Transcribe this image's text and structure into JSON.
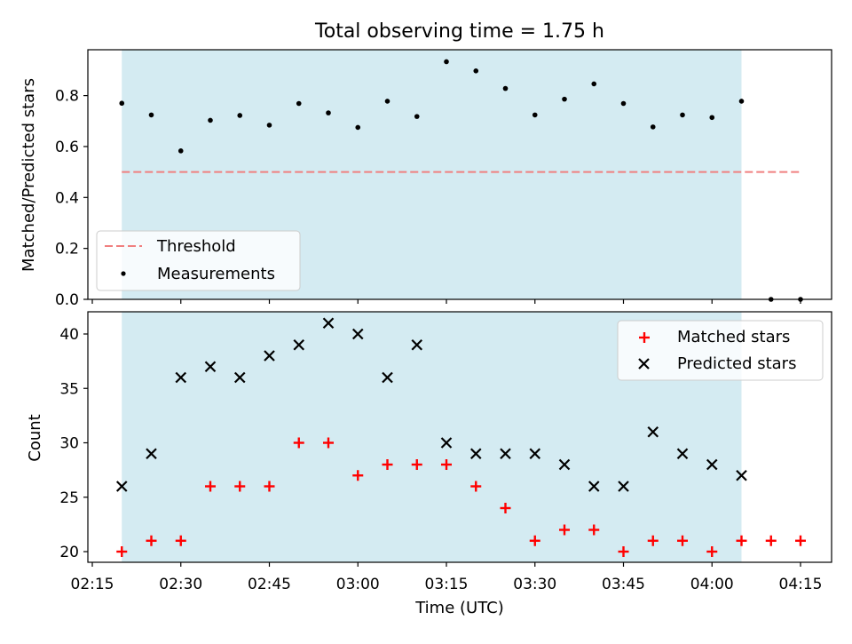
{
  "chart_data": [
    {
      "type": "scatter",
      "title": "Total observing time = 1.75 h",
      "ylabel": "Matched/Predicted stars",
      "xlabel": "",
      "ylim": [
        0,
        0.98
      ],
      "yticks": [
        0.0,
        0.2,
        0.4,
        0.6,
        0.8
      ],
      "ytick_labels": [
        "0.0",
        "0.2",
        "0.4",
        "0.6",
        "0.8"
      ],
      "shaded_span": {
        "from": "02:20",
        "to": "04:05",
        "color": "#add8e6"
      },
      "threshold": {
        "name": "Threshold",
        "value": 0.5,
        "from": "02:20",
        "to": "04:15",
        "color": "#f08080",
        "style": "dashed"
      },
      "series": [
        {
          "name": "Measurements",
          "color": "#000000",
          "marker": "dot",
          "x": [
            "02:20",
            "02:25",
            "02:30",
            "02:35",
            "02:40",
            "02:45",
            "02:50",
            "02:55",
            "03:00",
            "03:05",
            "03:10",
            "03:15",
            "03:20",
            "03:25",
            "03:30",
            "03:35",
            "03:40",
            "03:45",
            "03:50",
            "03:55",
            "04:00",
            "04:05",
            "04:10",
            "04:15"
          ],
          "y": [
            0.77,
            0.724,
            0.583,
            0.703,
            0.722,
            0.684,
            0.769,
            0.732,
            0.675,
            0.778,
            0.718,
            0.933,
            0.897,
            0.828,
            0.724,
            0.786,
            0.846,
            0.769,
            0.677,
            0.724,
            0.714,
            0.778,
            0.0,
            0.0
          ]
        }
      ],
      "legend": {
        "placement": "lower-left",
        "entries": [
          "Threshold",
          "Measurements"
        ]
      }
    },
    {
      "type": "scatter",
      "title": "",
      "ylabel": "Count",
      "xlabel": "Time (UTC)",
      "ylim": [
        19,
        42
      ],
      "yticks": [
        20,
        25,
        30,
        35,
        40
      ],
      "ytick_labels": [
        "20",
        "25",
        "30",
        "35",
        "40"
      ],
      "xticks": [
        "02:15",
        "02:30",
        "02:45",
        "03:00",
        "03:15",
        "03:30",
        "03:45",
        "04:00",
        "04:15"
      ],
      "shaded_span": {
        "from": "02:20",
        "to": "04:05",
        "color": "#add8e6"
      },
      "series": [
        {
          "name": "Matched stars",
          "color": "#ff0000",
          "marker": "plus",
          "x": [
            "02:20",
            "02:25",
            "02:30",
            "02:35",
            "02:40",
            "02:45",
            "02:50",
            "02:55",
            "03:00",
            "03:05",
            "03:10",
            "03:15",
            "03:20",
            "03:25",
            "03:30",
            "03:35",
            "03:40",
            "03:45",
            "03:50",
            "03:55",
            "04:00",
            "04:05",
            "04:10",
            "04:15"
          ],
          "y": [
            20,
            21,
            21,
            26,
            26,
            26,
            30,
            30,
            27,
            28,
            28,
            28,
            26,
            24,
            21,
            22,
            22,
            20,
            21,
            21,
            20,
            21,
            21,
            21
          ]
        },
        {
          "name": "Predicted stars",
          "color": "#000000",
          "marker": "x",
          "x": [
            "02:20",
            "02:25",
            "02:30",
            "02:35",
            "02:40",
            "02:45",
            "02:50",
            "02:55",
            "03:00",
            "03:05",
            "03:10",
            "03:15",
            "03:20",
            "03:25",
            "03:30",
            "03:35",
            "03:40",
            "03:45",
            "03:50",
            "03:55",
            "04:00",
            "04:05"
          ],
          "y": [
            26,
            29,
            36,
            37,
            36,
            38,
            39,
            41,
            40,
            36,
            39,
            30,
            29,
            29,
            29,
            28,
            26,
            26,
            31,
            29,
            28,
            27
          ]
        }
      ],
      "legend": {
        "placement": "top-right",
        "entries": [
          "Matched stars",
          "Predicted stars"
        ]
      }
    }
  ]
}
